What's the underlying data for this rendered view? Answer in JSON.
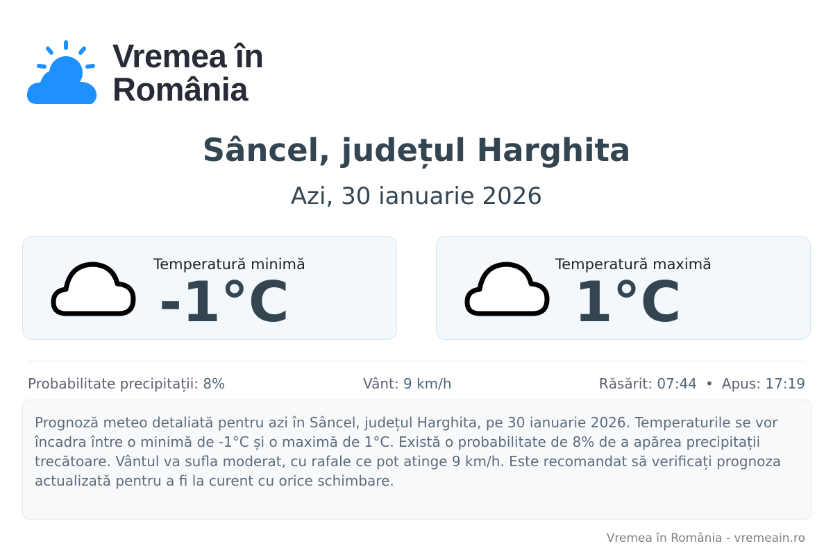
{
  "brand": {
    "line1": "Vremea în",
    "line2": "România",
    "color": "#1e90ff"
  },
  "header": {
    "title": "Sâncel, județul Harghita",
    "date": "Azi, 30 ianuarie 2026"
  },
  "cards": [
    {
      "label": "Temperatură minimă",
      "value": "-1°C",
      "icon": "cloud-icon"
    },
    {
      "label": "Temperatură maximă",
      "value": "1°C",
      "icon": "cloud-icon"
    }
  ],
  "stats": {
    "precip_label": "Probabilitate precipitații: ",
    "precip_value": "8%",
    "wind_label": "Vânt: ",
    "wind_value": "9 km/h",
    "sunrise_label": "Răsărit: ",
    "sunrise_value": "07:44",
    "bullet": "•",
    "sunset_label": "Apus: ",
    "sunset_value": "17:19"
  },
  "description": "Prognoză meteo detaliată pentru azi în Sâncel, județul Harghita, pe 30 ianuarie 2026. Temperaturile se vor încadra între o minimă de -1°C și o maximă de 1°C. Există o probabilitate de 8% de a apărea precipitații trecătoare. Vântul va sufla moderat, cu rafale ce pot atinge 9 km/h. Este recomandat să verificați prognoza actualizată pentru a fi la curent cu orice schimbare.",
  "footer": "Vremea în România - vremeain.ro"
}
